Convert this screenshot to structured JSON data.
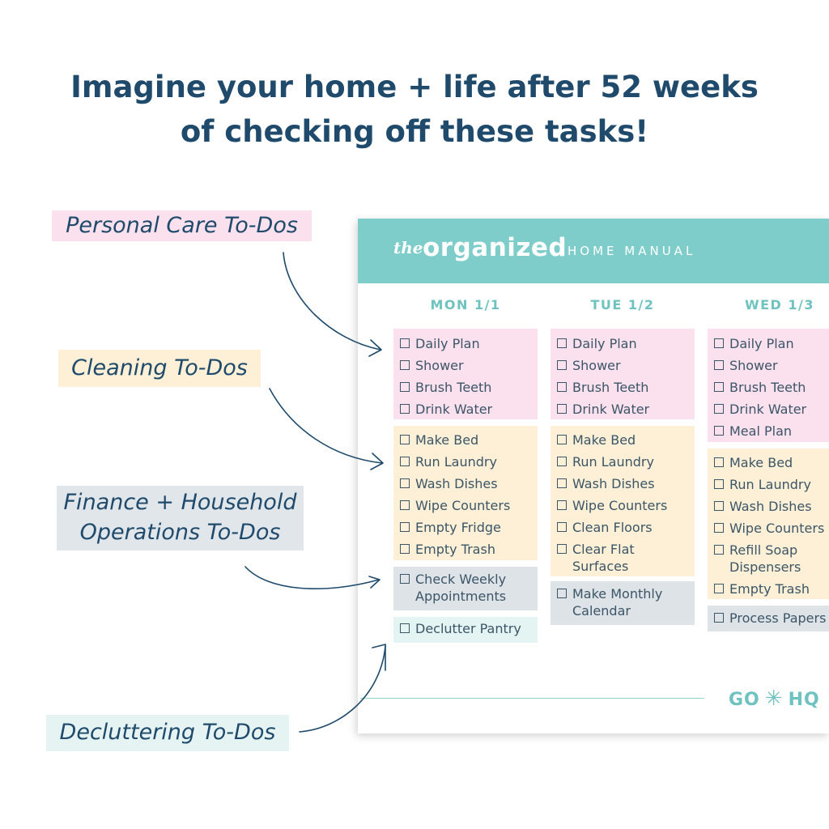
{
  "headline": {
    "line1": "Imagine your home + life after 52 weeks",
    "line2": "of checking off these tasks!"
  },
  "labels": {
    "personal": "Personal Care To-Dos",
    "cleaning": "Cleaning To-Dos",
    "finance_line1": "Finance + Household",
    "finance_line2": "Operations To-Dos",
    "declutter": "Decluttering To-Dos"
  },
  "manual": {
    "brand_the": "the",
    "brand_name": "organized",
    "brand_sub": "HOME MANUAL",
    "footer_logo_left": "GO",
    "footer_logo_right": "HQ",
    "days": [
      {
        "heading": "MON 1/1",
        "personal": [
          "Daily Plan",
          "Shower",
          "Brush Teeth",
          "Drink Water"
        ],
        "cleaning": [
          "Make Bed",
          "Run Laundry",
          "Wash Dishes",
          "Wipe Counters",
          "Empty Fridge",
          "Empty Trash"
        ],
        "finance": [
          "Check Weekly Appointments"
        ],
        "declutter": [
          "Declutter Pantry"
        ]
      },
      {
        "heading": "TUE 1/2",
        "personal": [
          "Daily Plan",
          "Shower",
          "Brush Teeth",
          "Drink Water"
        ],
        "cleaning": [
          "Make Bed",
          "Run Laundry",
          "Wash Dishes",
          "Wipe Counters",
          "Clean Floors",
          "Clear Flat Surfaces"
        ],
        "finance": [
          "Make Monthly Calendar"
        ]
      },
      {
        "heading": "WED 1/3",
        "personal": [
          "Daily Plan",
          "Shower",
          "Brush Teeth",
          "Drink Water",
          "Meal Plan"
        ],
        "cleaning": [
          "Make Bed",
          "Run Laundry",
          "Wash Dishes",
          "Wipe Counters",
          "Refill Soap Dispensers",
          "Empty Trash"
        ],
        "finance": [
          "Process Papers"
        ]
      }
    ]
  },
  "colors": {
    "navy": "#1f4a6b",
    "teal": "#7ecdcb",
    "pink": "#fbe1ee",
    "yellow": "#fdf0d6",
    "gray": "#dde3e7",
    "mint": "#e3f4f2"
  },
  "icons": {
    "checkbox": "checkbox-icon",
    "arrow": "curved-arrow-icon",
    "asterisk": "asterisk-icon"
  }
}
